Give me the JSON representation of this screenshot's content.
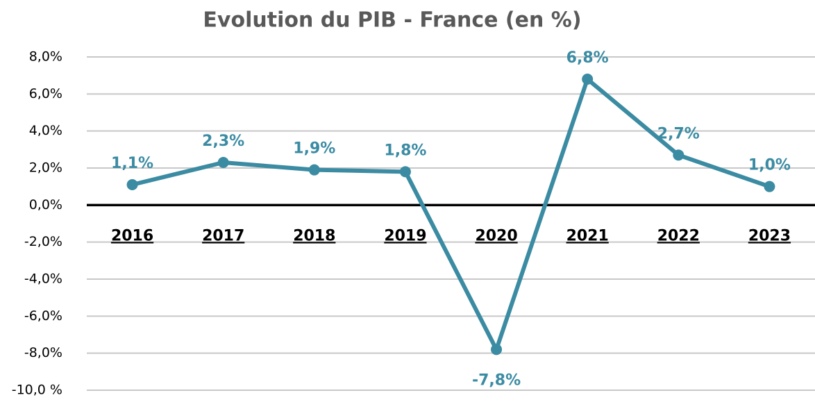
{
  "chart_data": {
    "type": "line",
    "title": "Evolution du PIB - France (en %)",
    "categories": [
      "2016",
      "2017",
      "2018",
      "2019",
      "2020",
      "2021",
      "2022",
      "2023"
    ],
    "values": [
      1.1,
      2.3,
      1.9,
      1.8,
      -7.8,
      6.8,
      2.7,
      1.0
    ],
    "value_labels": [
      "1,1%",
      "2,3%",
      "1,9%",
      "1,8%",
      "-7,8%",
      "6,8%",
      "2,7%",
      "1,0%"
    ],
    "color": "#3b8ba3",
    "ylim": [
      -10,
      8
    ],
    "yticks": [
      {
        "value": 8,
        "label": "8,0%"
      },
      {
        "value": 6,
        "label": "6,0%"
      },
      {
        "value": 4,
        "label": "4,0%"
      },
      {
        "value": 2,
        "label": "2,0%"
      },
      {
        "value": 0,
        "label": "0,0%"
      },
      {
        "value": -2,
        "label": "-2,0%"
      },
      {
        "value": -4,
        "label": "-4,0%"
      },
      {
        "value": -6,
        "label": "-6,0%"
      },
      {
        "value": -8,
        "label": "-8,0%"
      },
      {
        "value": -10,
        "label": "-10,0 %"
      }
    ],
    "grid": true
  }
}
